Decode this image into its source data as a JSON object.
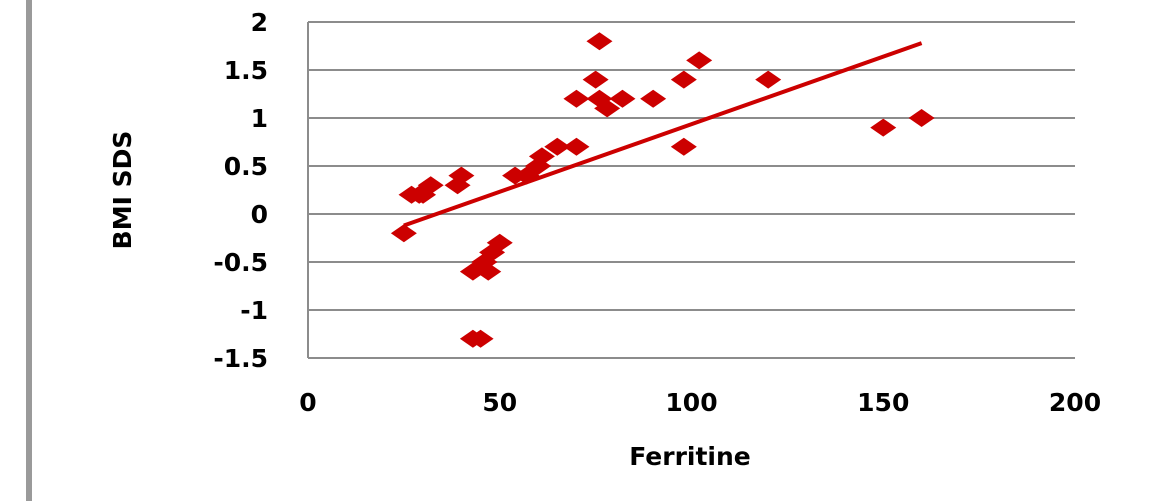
{
  "chart_data": {
    "type": "scatter",
    "title": "",
    "xlabel": "Ferritine",
    "ylabel": "BMI SDS",
    "xlim": [
      0,
      200
    ],
    "ylim": [
      -1.5,
      2
    ],
    "x_ticks": [
      "0",
      "50",
      "100",
      "150",
      "200"
    ],
    "y_ticks": [
      "2",
      "1.5",
      "1",
      "0.5",
      "0",
      "-0.5",
      "-1",
      "-1.5"
    ],
    "grid": "horizontal",
    "marker": "diamond",
    "color": "#cc0000",
    "points": [
      {
        "x": 25,
        "y": -0.2
      },
      {
        "x": 27,
        "y": 0.2
      },
      {
        "x": 29,
        "y": 0.2
      },
      {
        "x": 30,
        "y": 0.2
      },
      {
        "x": 32,
        "y": 0.3
      },
      {
        "x": 39,
        "y": 0.3
      },
      {
        "x": 40,
        "y": 0.4
      },
      {
        "x": 43,
        "y": -1.3
      },
      {
        "x": 45,
        "y": -1.3
      },
      {
        "x": 43,
        "y": -0.6
      },
      {
        "x": 46,
        "y": -0.5
      },
      {
        "x": 47,
        "y": -0.6
      },
      {
        "x": 48,
        "y": -0.4
      },
      {
        "x": 50,
        "y": -0.3
      },
      {
        "x": 54,
        "y": 0.4
      },
      {
        "x": 57,
        "y": 0.4
      },
      {
        "x": 60,
        "y": 0.5
      },
      {
        "x": 61,
        "y": 0.6
      },
      {
        "x": 65,
        "y": 0.7
      },
      {
        "x": 70,
        "y": 1.2
      },
      {
        "x": 70,
        "y": 0.7
      },
      {
        "x": 75,
        "y": 1.4
      },
      {
        "x": 76,
        "y": 1.8
      },
      {
        "x": 76,
        "y": 1.2
      },
      {
        "x": 78,
        "y": 1.1
      },
      {
        "x": 82,
        "y": 1.2
      },
      {
        "x": 90,
        "y": 1.2
      },
      {
        "x": 98,
        "y": 1.4
      },
      {
        "x": 98,
        "y": 0.7
      },
      {
        "x": 102,
        "y": 1.6
      },
      {
        "x": 120,
        "y": 1.4
      },
      {
        "x": 150,
        "y": 0.9
      },
      {
        "x": 160,
        "y": 1.0
      }
    ],
    "trendline": {
      "x": [
        25,
        160
      ],
      "y": [
        -0.12,
        1.78
      ]
    }
  }
}
